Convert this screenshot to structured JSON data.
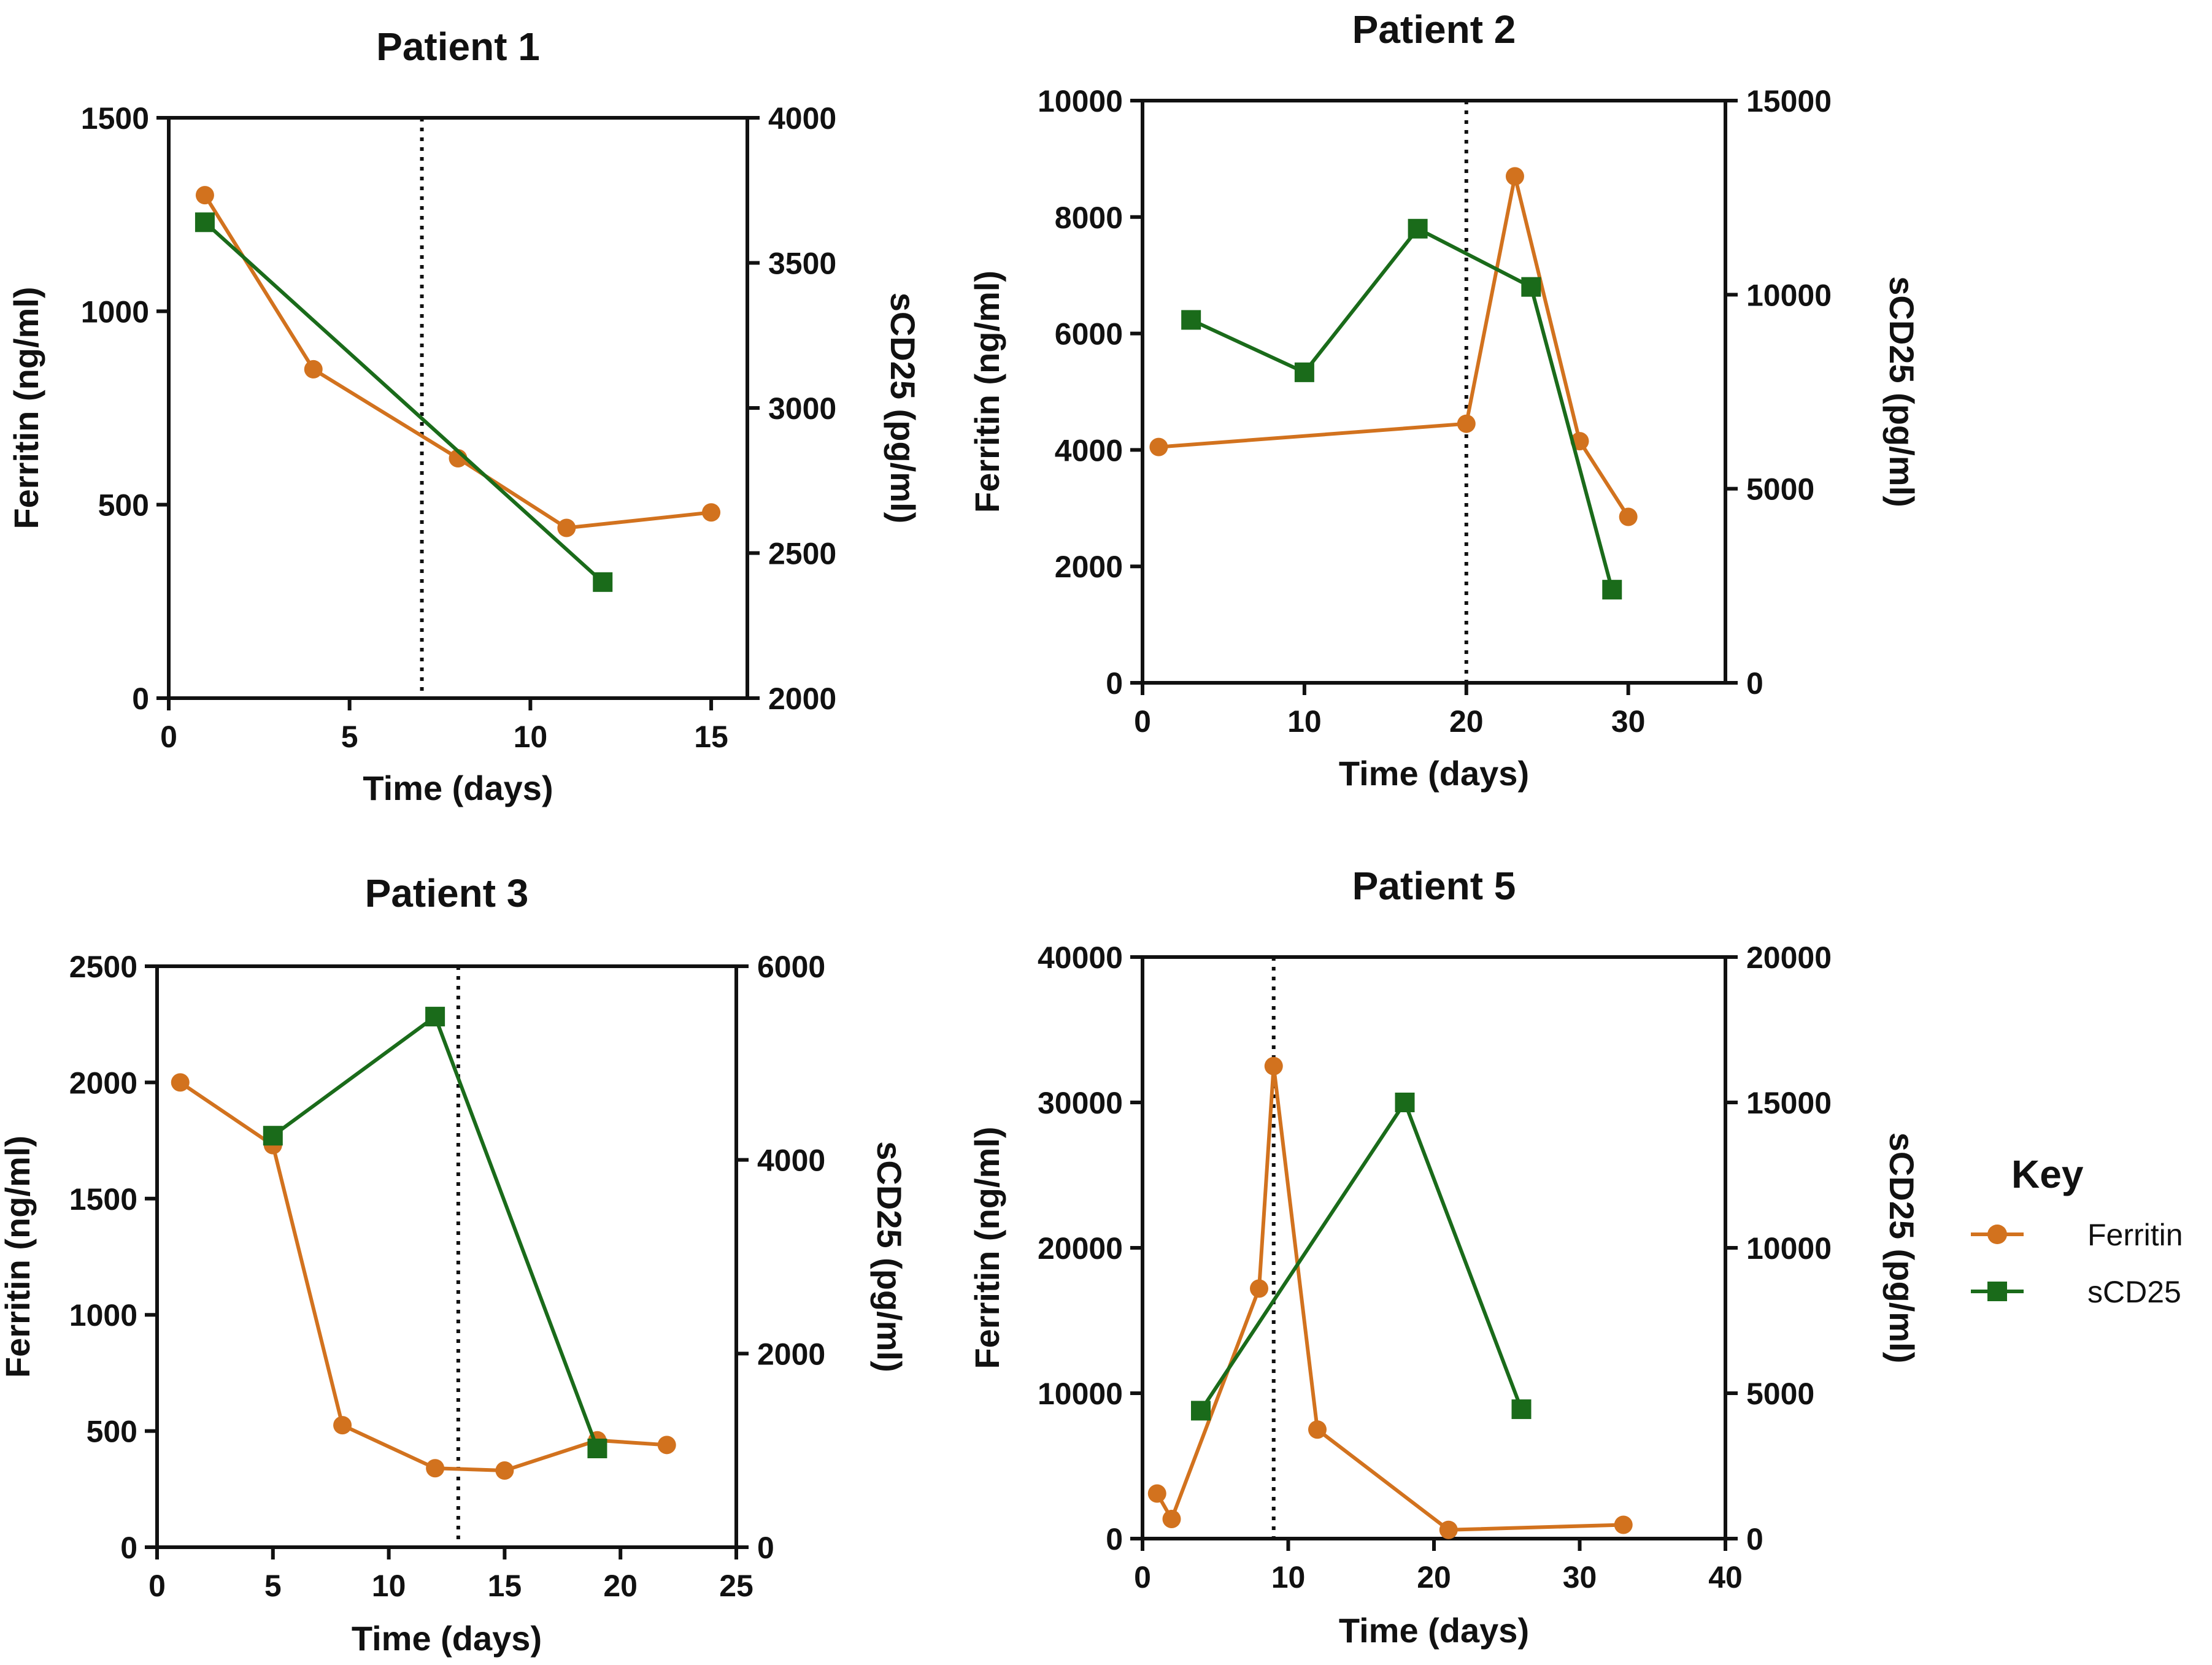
{
  "legend": {
    "title": "Key",
    "entries": [
      {
        "name": "Ferritin",
        "marker": "circle",
        "color": "#D2721E"
      },
      {
        "name": "sCD25",
        "marker": "square",
        "color": "#1A6B1A"
      }
    ]
  },
  "colors": {
    "ferritin": "#D2721E",
    "scd25": "#1A6B1A",
    "axis": "#111111"
  },
  "chart_data": [
    {
      "type": "line",
      "title": "Patient 1",
      "xlabel": "Time (days)",
      "ylabel": "Ferritin (ng/ml)",
      "y2label": "sCD25 (pg/ml)",
      "xlim": [
        0,
        16
      ],
      "ylim": [
        0,
        1500
      ],
      "y2lim": [
        2000,
        4000
      ],
      "xticks": [
        0,
        5,
        10,
        15
      ],
      "yticks": [
        0,
        500,
        1000,
        1500
      ],
      "y2ticks": [
        2000,
        2500,
        3000,
        3500,
        4000
      ],
      "vline_x": 7,
      "series": [
        {
          "name": "Ferritin",
          "axis": "left",
          "x": [
            1,
            4,
            8,
            11,
            15
          ],
          "y": [
            1300,
            850,
            620,
            440,
            480
          ]
        },
        {
          "name": "sCD25",
          "axis": "right",
          "x": [
            1,
            12
          ],
          "y": [
            3640,
            2400
          ]
        }
      ]
    },
    {
      "type": "line",
      "title": "Patient 2",
      "xlabel": "Time (days)",
      "ylabel": "Ferritin (ng/ml)",
      "y2label": "sCD25 (pg/ml)",
      "xlim": [
        0,
        36
      ],
      "ylim": [
        0,
        10000
      ],
      "y2lim": [
        0,
        15000
      ],
      "xticks": [
        0,
        10,
        20,
        30
      ],
      "yticks": [
        0,
        2000,
        4000,
        6000,
        8000,
        10000
      ],
      "y2ticks": [
        0,
        5000,
        10000,
        15000
      ],
      "vline_x": 20,
      "series": [
        {
          "name": "Ferritin",
          "axis": "left",
          "x": [
            1,
            20,
            23,
            27,
            30
          ],
          "y": [
            4050,
            4450,
            8700,
            4150,
            2850
          ]
        },
        {
          "name": "sCD25",
          "axis": "right",
          "x": [
            3,
            10,
            17,
            24,
            29
          ],
          "y": [
            9350,
            8000,
            11700,
            10200,
            2400
          ]
        }
      ]
    },
    {
      "type": "line",
      "title": "Patient 3",
      "xlabel": "Time (days)",
      "ylabel": "Ferritin (ng/ml)",
      "y2label": "sCD25 (pg/ml)",
      "xlim": [
        0,
        25
      ],
      "ylim": [
        0,
        2500
      ],
      "y2lim": [
        0,
        6000
      ],
      "xticks": [
        0,
        5,
        10,
        15,
        20,
        25
      ],
      "yticks": [
        0,
        500,
        1000,
        1500,
        2000,
        2500
      ],
      "y2ticks": [
        0,
        2000,
        4000,
        6000
      ],
      "vline_x": 13,
      "series": [
        {
          "name": "Ferritin",
          "axis": "left",
          "x": [
            1,
            5,
            8,
            12,
            15,
            19,
            22
          ],
          "y": [
            2000,
            1730,
            525,
            340,
            330,
            460,
            440
          ]
        },
        {
          "name": "sCD25",
          "axis": "right",
          "x": [
            5,
            12,
            19
          ],
          "y": [
            4250,
            5480,
            1020
          ]
        }
      ]
    },
    {
      "type": "line",
      "title": "Patient 5",
      "xlabel": "Time (days)",
      "ylabel": "Ferritin (ng/ml)",
      "y2label": "sCD25 (pg/ml)",
      "xlim": [
        0,
        40
      ],
      "ylim": [
        0,
        40000
      ],
      "y2lim": [
        0,
        20000
      ],
      "xticks": [
        0,
        10,
        20,
        30,
        40
      ],
      "yticks": [
        0,
        10000,
        20000,
        30000,
        40000
      ],
      "y2ticks": [
        0,
        5000,
        10000,
        15000,
        20000
      ],
      "vline_x": 9,
      "series": [
        {
          "name": "Ferritin",
          "axis": "left",
          "x": [
            1,
            2,
            8,
            9,
            12,
            21,
            33
          ],
          "y": [
            3100,
            1350,
            17200,
            32500,
            7500,
            600,
            950
          ]
        },
        {
          "name": "sCD25",
          "axis": "right",
          "x": [
            4,
            18,
            26
          ],
          "y": [
            4400,
            15000,
            4450
          ]
        }
      ]
    }
  ]
}
